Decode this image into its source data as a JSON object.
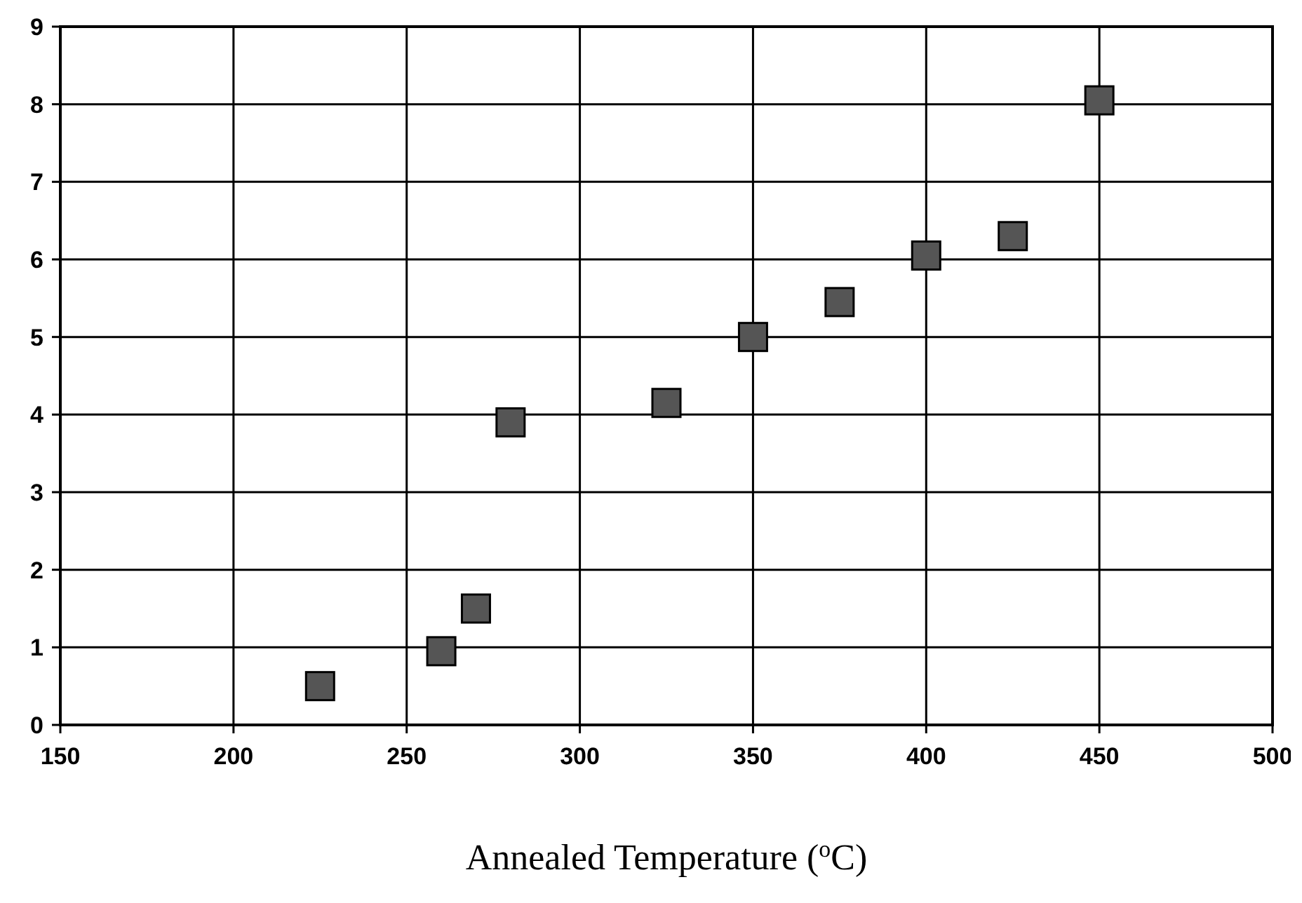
{
  "chart_data": {
    "type": "scatter",
    "xlabel": "Annealed Temperature ($^{o}$C)",
    "x": [
      225,
      260,
      270,
      280,
      325,
      350,
      375,
      400,
      425,
      450
    ],
    "values": [
      0.5,
      0.95,
      1.5,
      3.9,
      4.15,
      5.0,
      5.45,
      6.05,
      6.3,
      8.05
    ],
    "color": "#555555",
    "marker": "square",
    "xlim": [
      150,
      500
    ],
    "xticks": [
      150,
      200,
      250,
      300,
      350,
      400,
      450,
      500
    ],
    "ylim": [
      0,
      9
    ],
    "yticks": [
      0,
      1,
      2,
      3,
      4,
      5,
      6,
      7,
      8,
      9
    ],
    "grid": true
  }
}
